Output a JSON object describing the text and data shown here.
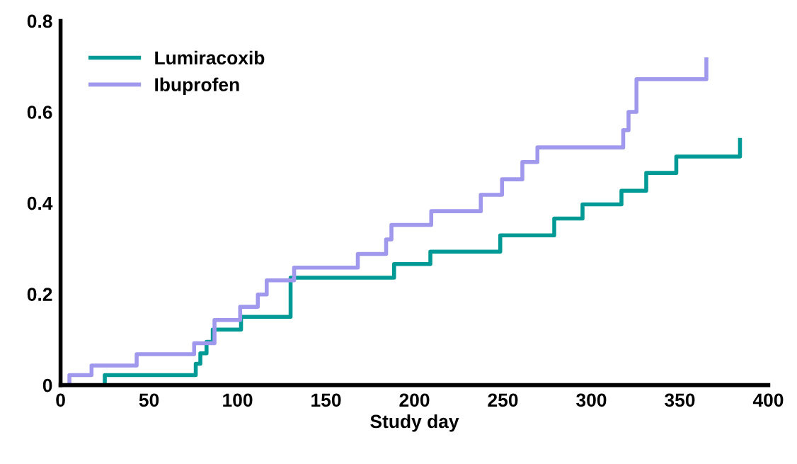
{
  "chart_data": {
    "type": "step",
    "xlabel": "Study day",
    "xlim": [
      0,
      400
    ],
    "xticks": [
      0,
      50,
      100,
      150,
      200,
      250,
      300,
      350,
      400
    ],
    "ylim": [
      0,
      0.8
    ],
    "yticks": [
      {
        "value": 0,
        "label": "0"
      },
      0.2,
      0.4,
      0.6,
      0.8
    ],
    "grid": false,
    "legend": "top left",
    "marker": "none",
    "line_style": "solid",
    "series": [
      {
        "name": "Lumiracoxib",
        "color": "#009a96",
        "x": [
          25,
          25,
          76.4,
          79,
          82.5,
          86,
          102,
          130,
          188.5,
          209,
          248.5,
          279,
          295,
          317,
          331,
          348,
          384,
          384
        ],
        "values": [
          0,
          0.022,
          0.047,
          0.07,
          0.095,
          0.122,
          0.15,
          0.236,
          0.266,
          0.293,
          0.329,
          0.366,
          0.397,
          0.427,
          0.466,
          0.502,
          0.502,
          0.543
        ]
      },
      {
        "name": "Ibuprofen",
        "color": "#9f98ec",
        "x": [
          5,
          5,
          17.5,
          43,
          75.5,
          87,
          101.5,
          111.5,
          116.5,
          132,
          168,
          184,
          187,
          209.5,
          237.5,
          249.5,
          261,
          269.5,
          318,
          321,
          325.5,
          365,
          365
        ],
        "values": [
          0,
          0.022,
          0.043,
          0.068,
          0.092,
          0.143,
          0.172,
          0.199,
          0.23,
          0.258,
          0.288,
          0.32,
          0.352,
          0.382,
          0.418,
          0.452,
          0.49,
          0.522,
          0.56,
          0.6,
          0.672,
          0.672,
          0.72
        ]
      }
    ]
  }
}
